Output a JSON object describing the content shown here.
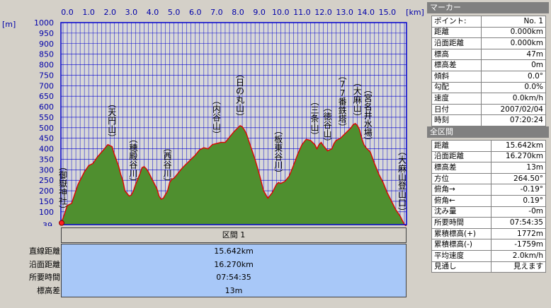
{
  "chart_data": {
    "type": "area",
    "x_unit": "[km]",
    "y_unit": "[m]",
    "xlim": [
      -0.3,
      15.9
    ],
    "ylim": [
      39,
      1000
    ],
    "x_ticks": [
      "0.0",
      "1.0",
      "2.0",
      "3.0",
      "4.0",
      "5.0",
      "6.0",
      "7.0",
      "8.0",
      "9.0",
      "10.0",
      "11.0",
      "12.0",
      "13.0",
      "14.0",
      "15.0"
    ],
    "y_ticks": [
      "1000",
      "950",
      "900",
      "850",
      "800",
      "750",
      "700",
      "650",
      "600",
      "550",
      "500",
      "450",
      "400",
      "350",
      "300",
      "250",
      "200",
      "150",
      "100"
    ],
    "y_min_label": "39",
    "grid": true,
    "profile": {
      "x": [
        -0.3,
        -0.2,
        0.0,
        0.2,
        0.3,
        0.5,
        0.8,
        1.0,
        1.2,
        1.4,
        1.7,
        1.9,
        2.1,
        2.2,
        2.4,
        2.5,
        2.6,
        2.7,
        2.9,
        3.0,
        3.1,
        3.2,
        3.4,
        3.5,
        3.6,
        3.7,
        3.8,
        4.0,
        4.2,
        4.3,
        4.4,
        4.5,
        4.7,
        4.8,
        4.9,
        5.0,
        5.2,
        5.4,
        5.6,
        5.8,
        6.0,
        6.2,
        6.4,
        6.6,
        6.8,
        7.0,
        7.2,
        7.4,
        7.6,
        7.8,
        8.0,
        8.1,
        8.2,
        8.3,
        8.4,
        8.5,
        8.6,
        8.8,
        9.0,
        9.2,
        9.4,
        9.6,
        9.8,
        9.9,
        10.0,
        10.2,
        10.4,
        10.6,
        10.8,
        11.0,
        11.2,
        11.4,
        11.6,
        11.7,
        11.8,
        11.9,
        12.0,
        12.2,
        12.4,
        12.5,
        12.6,
        12.7,
        12.8,
        13.0,
        13.2,
        13.3,
        13.4,
        13.5,
        13.6,
        13.7,
        13.8,
        13.9,
        14.0,
        14.2,
        14.4,
        14.6,
        14.8,
        15.0,
        15.2,
        15.4,
        15.6,
        15.7,
        15.8,
        15.9
      ],
      "y": [
        47,
        70,
        130,
        140,
        170,
        230,
        290,
        320,
        330,
        360,
        395,
        420,
        410,
        375,
        320,
        280,
        250,
        200,
        175,
        180,
        200,
        230,
        280,
        310,
        315,
        305,
        290,
        250,
        210,
        175,
        160,
        165,
        200,
        240,
        255,
        260,
        285,
        310,
        330,
        350,
        370,
        395,
        405,
        400,
        420,
        425,
        430,
        430,
        455,
        480,
        500,
        510,
        505,
        490,
        470,
        440,
        410,
        350,
        280,
        200,
        165,
        190,
        230,
        240,
        235,
        245,
        270,
        320,
        375,
        420,
        445,
        440,
        420,
        400,
        420,
        430,
        415,
        390,
        400,
        425,
        440,
        445,
        450,
        470,
        490,
        500,
        515,
        520,
        510,
        490,
        450,
        420,
        405,
        385,
        330,
        280,
        240,
        190,
        150,
        110,
        80,
        60,
        40,
        30
      ]
    },
    "point_labels": [
      {
        "name": "(御嶽神社)",
        "x": -0.2
      },
      {
        "name": "(天円山)",
        "x": 2.1
      },
      {
        "name": "(穂殿谷川)",
        "x": 3.1
      },
      {
        "name": "(西谷川)",
        "x": 4.7
      },
      {
        "name": "(内谷山)",
        "x": 7.0
      },
      {
        "name": "(日の丸山)",
        "x": 8.1
      },
      {
        "name": "(板東谷川)",
        "x": 9.9
      },
      {
        "name": "(三条山)",
        "x": 11.6
      },
      {
        "name": "(徳谷山)",
        "x": 12.2
      },
      {
        "name": "(77番鉄塔)",
        "x": 12.9
      },
      {
        "name": "(大麻山)",
        "x": 13.6
      },
      {
        "name": "(宮名井水場)",
        "x": 14.1
      },
      {
        "name": "(大麻山登山口)",
        "x": 15.7
      }
    ]
  },
  "section": {
    "title": "区間 1",
    "rows": [
      {
        "label": "直線距離",
        "value": "15.642km"
      },
      {
        "label": "沿面距離",
        "value": "16.270km"
      },
      {
        "label": "所要時間",
        "value": "07:54:35"
      },
      {
        "label": "標高差",
        "value": "13m"
      }
    ]
  },
  "marker_panel": {
    "title": "マーカー",
    "rows": [
      {
        "label": "ポイント:",
        "value": "No. 1"
      },
      {
        "label": "距離",
        "value": "0.000km"
      },
      {
        "label": "沿面距離",
        "value": "0.000km"
      },
      {
        "label": "標高",
        "value": "47m"
      },
      {
        "label": "標高差",
        "value": "0m"
      },
      {
        "label": "傾斜",
        "value": "0.0°"
      },
      {
        "label": "勾配",
        "value": "0.0%"
      },
      {
        "label": "速度",
        "value": "0.0km/h"
      },
      {
        "label": "日付",
        "value": "2007/02/04"
      },
      {
        "label": "時刻",
        "value": "07:20:24"
      }
    ]
  },
  "total_panel": {
    "title": "全区間",
    "rows": [
      {
        "label": "距離",
        "value": "15.642km"
      },
      {
        "label": "沿面距離",
        "value": "16.270km"
      },
      {
        "label": "標高差",
        "value": "13m"
      },
      {
        "label": "方位",
        "value": "264.50°"
      },
      {
        "label": "俯角→",
        "value": "-0.19°"
      },
      {
        "label": "俯角←",
        "value": "0.19°"
      },
      {
        "label": "沈み量",
        "value": "-0m"
      },
      {
        "label": "所要時間",
        "value": "07:54:35"
      },
      {
        "label": "累積標高(+)",
        "value": "1772m"
      },
      {
        "label": "累積標高(-)",
        "value": "-1759m"
      },
      {
        "label": "平均速度",
        "value": "2.0km/h"
      },
      {
        "label": "見通し",
        "value": "見えます"
      }
    ]
  },
  "colors": {
    "plot_bg": "#d8d8d8",
    "grid": "#0000cc",
    "fill": "#4f8f2f",
    "line": "#e00000",
    "axis_text": "#0000aa",
    "summary_bg": "#a8c8f8"
  }
}
